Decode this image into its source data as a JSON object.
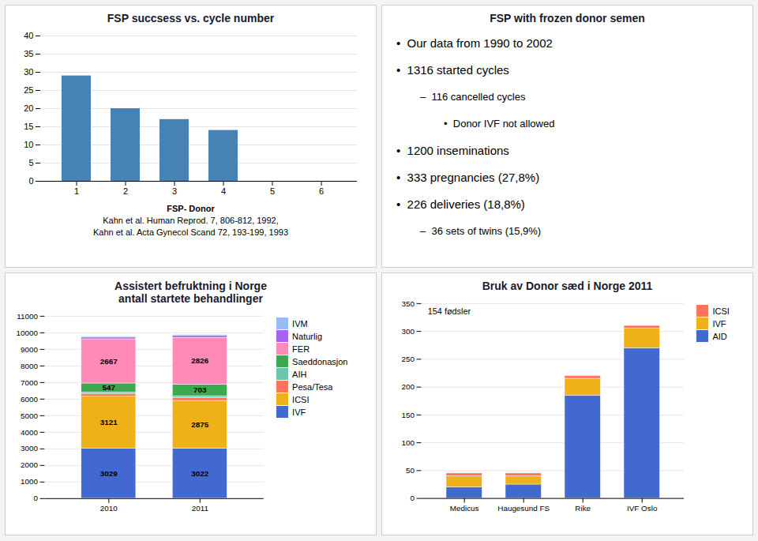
{
  "chart_data": [
    {
      "type": "bar",
      "title": "FSP succsess vs. cycle number",
      "categories": [
        "1",
        "2",
        "3",
        "4",
        "5",
        "6"
      ],
      "values": [
        29,
        20,
        17,
        14,
        0,
        0
      ],
      "ylim": [
        0,
        40
      ],
      "yticks": [
        0,
        5,
        10,
        15,
        20,
        25,
        30,
        35,
        40
      ],
      "grid": true,
      "annotations": [
        "FSP- Donor",
        "Kahn et al. Human Reprod. 7, 806-812, 1992,",
        "Kahn et al. Acta Gynecol Scand 72, 193-199, 1993"
      ]
    },
    {
      "type": "text",
      "title": "FSP with frozen donor semen",
      "annotations": [
        "•  Our data from 1990 to 2002",
        "•  1316 started cycles",
        [
          "–  116 cancelled cycles",
          [
            "•  Donor IVF not allowed"
          ]
        ],
        "•  1200 inseminations",
        "•  333 pregnancies (27,8%)",
        "•  226 deliveries (18,8%)",
        [
          "–  36 sets of twins (15,9%)"
        ]
      ]
    },
    {
      "type": "bar",
      "stacked": true,
      "title": "Assistert befruktning i Norge\nantall startete behandlinger",
      "categories": [
        "2010",
        "2011"
      ],
      "series": [
        {
          "name": "IVF",
          "values": [
            3029,
            3022
          ],
          "data_labels": true
        },
        {
          "name": "ICSI",
          "values": [
            3121,
            2875
          ],
          "data_labels": true
        },
        {
          "name": "Pesa/Tesa",
          "values": [
            150,
            170
          ]
        },
        {
          "name": "AIH",
          "values": [
            100,
            110
          ]
        },
        {
          "name": "Saeddonasjon",
          "values": [
            547,
            703
          ],
          "data_labels": true
        },
        {
          "name": "FER",
          "values": [
            2667,
            2826
          ],
          "data_labels": true
        },
        {
          "name": "Naturlig",
          "values": [
            100,
            110
          ]
        },
        {
          "name": "IVM",
          "values": [
            50,
            60
          ]
        }
      ],
      "ylim": [
        0,
        11000
      ],
      "yticks": [
        0,
        1000,
        2000,
        3000,
        4000,
        5000,
        6000,
        7000,
        8000,
        9000,
        10000,
        11000
      ],
      "grid": true,
      "legend": "right"
    },
    {
      "type": "bar",
      "stacked": true,
      "title": "Bruk av Donor sæd i Norge 2011",
      "categories": [
        "Medicus",
        "Haugesund FS",
        "Rike",
        "IVF Oslo"
      ],
      "series": [
        {
          "name": "AID",
          "values": [
            20,
            25,
            185,
            270
          ]
        },
        {
          "name": "IVF",
          "values": [
            20,
            15,
            30,
            35
          ]
        },
        {
          "name": "ICSI",
          "values": [
            5,
            5,
            5,
            5
          ]
        }
      ],
      "ylim": [
        0,
        350
      ],
      "yticks": [
        0,
        50,
        100,
        150,
        200,
        250,
        300,
        350
      ],
      "grid": true,
      "legend": "right",
      "annotations": [
        "154 fødsler"
      ]
    }
  ]
}
